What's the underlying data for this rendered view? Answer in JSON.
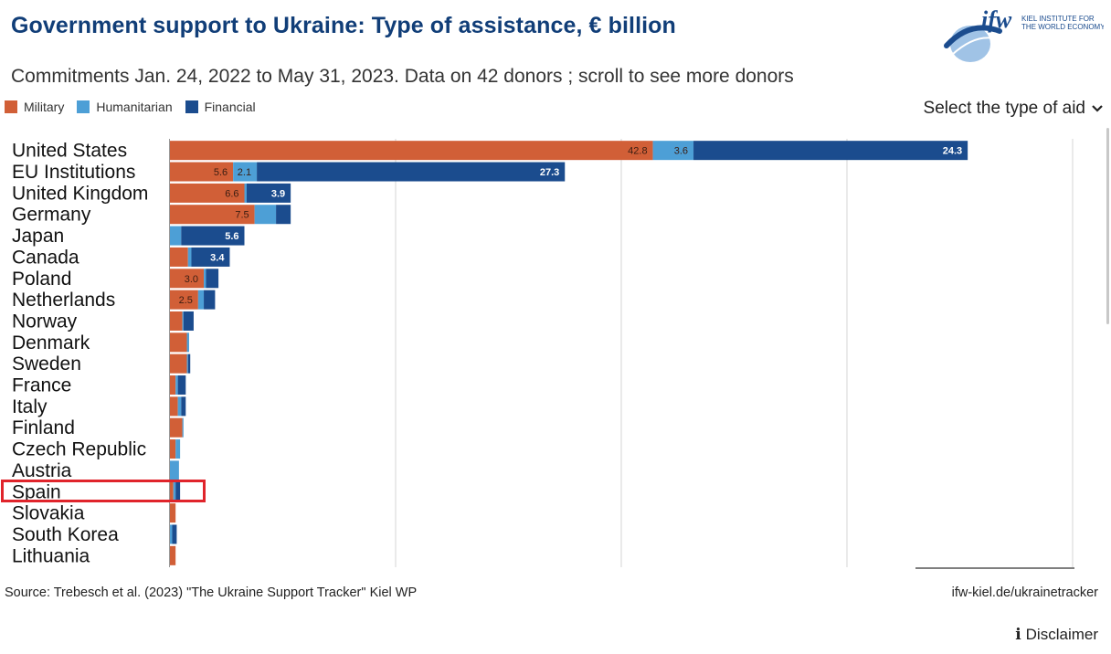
{
  "header": {
    "title": "Government support to Ukraine: Type of assistance, € billion",
    "subtitle": "Commitments Jan. 24, 2022 to May 31, 2023. Data on 42 donors ; scroll to see more donors"
  },
  "logo": {
    "brand": "ifw",
    "line1": "KIEL INSTITUTE FOR",
    "line2": "THE WORLD ECONOMY"
  },
  "legend": [
    {
      "label": "Military",
      "color": "#d15f37"
    },
    {
      "label": "Humanitarian",
      "color": "#4d9fd6"
    },
    {
      "label": "Financial",
      "color": "#1b4c8e"
    }
  ],
  "controls": {
    "type_select_label": "Select the type of aid"
  },
  "highlight": {
    "country": "Spain"
  },
  "chart_data": {
    "type": "bar",
    "orientation": "horizontal",
    "stacked": true,
    "title": "Government support to Ukraine: Type of assistance, € billion",
    "xlim": [
      0,
      80
    ],
    "grid": true,
    "categories": [
      "United States",
      "EU Institutions",
      "United Kingdom",
      "Germany",
      "Japan",
      "Canada",
      "Poland",
      "Netherlands",
      "Norway",
      "Denmark",
      "Sweden",
      "France",
      "Italy",
      "Finland",
      "Czech Republic",
      "Austria",
      "Spain",
      "Slovakia",
      "South Korea",
      "Lithuania"
    ],
    "series": [
      {
        "name": "Military",
        "color": "#d15f37",
        "values": [
          42.8,
          5.6,
          6.6,
          7.5,
          0.0,
          1.6,
          3.0,
          2.5,
          1.1,
          1.5,
          1.5,
          0.5,
          0.7,
          1.1,
          0.5,
          0.0,
          0.3,
          0.5,
          0.0,
          0.5
        ],
        "labels": [
          "42.8",
          "5.6",
          "6.6",
          "7.5",
          "",
          "",
          "3.0",
          "2.5",
          "",
          "",
          "",
          "",
          "",
          "",
          "",
          "",
          "",
          "",
          "",
          ""
        ]
      },
      {
        "name": "Humanitarian",
        "color": "#4d9fd6",
        "values": [
          3.6,
          2.1,
          0.2,
          1.9,
          1.0,
          0.3,
          0.2,
          0.5,
          0.1,
          0.2,
          0.1,
          0.2,
          0.3,
          0.1,
          0.4,
          0.8,
          0.2,
          0.0,
          0.2,
          0.0
        ],
        "labels": [
          "3.6",
          "2.1",
          "",
          "",
          "",
          "",
          "",
          "",
          "",
          "",
          "",
          "",
          "",
          "",
          "",
          "",
          "",
          "",
          "",
          ""
        ]
      },
      {
        "name": "Financial",
        "color": "#1b4c8e",
        "values": [
          24.3,
          27.3,
          3.9,
          1.3,
          5.6,
          3.4,
          1.1,
          1.0,
          0.9,
          0.0,
          0.2,
          0.7,
          0.4,
          0.0,
          0.0,
          0.0,
          0.4,
          0.0,
          0.4,
          0.0
        ],
        "labels": [
          "24.3",
          "27.3",
          "3.9",
          "",
          "5.6",
          "3.4",
          "",
          "",
          "",
          "",
          "",
          "",
          "",
          "",
          "",
          "",
          "",
          "",
          "",
          ""
        ]
      }
    ]
  },
  "footer": {
    "source": "Source: Trebesch et al. (2023) \"The Ukraine Support Tracker\" Kiel WP",
    "link": "ifw-kiel.de/ukrainetracker",
    "disclaimer": "Disclaimer",
    "info_icon": "i"
  }
}
